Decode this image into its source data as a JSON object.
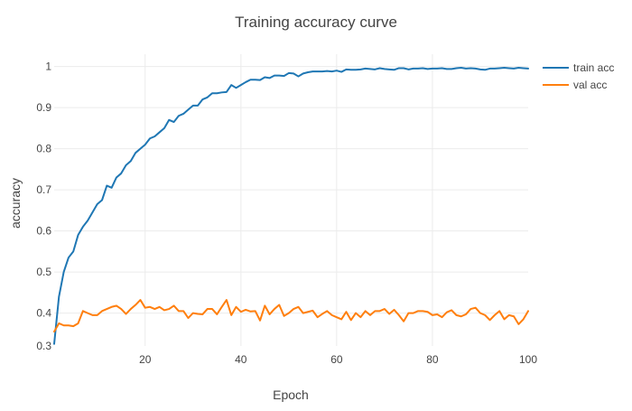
{
  "chart_data": {
    "type": "line",
    "title": "Training accuracy curve",
    "xlabel": "Epoch",
    "ylabel": "accuracy",
    "xlim": [
      1,
      100
    ],
    "ylim": [
      0.32,
      1.03
    ],
    "xticks": [
      20,
      40,
      60,
      80,
      100
    ],
    "yticks": [
      0.3,
      0.4,
      0.5,
      0.6,
      0.7,
      0.8,
      0.9,
      1
    ],
    "ytick_labels": [
      "0.3",
      "0.4",
      "0.5",
      "0.6",
      "0.7",
      "0.8",
      "0.9",
      "1"
    ],
    "grid": true,
    "legend_position": "top-right",
    "x": [
      1,
      2,
      3,
      4,
      5,
      6,
      7,
      8,
      9,
      10,
      11,
      12,
      13,
      14,
      15,
      16,
      17,
      18,
      19,
      20,
      21,
      22,
      23,
      24,
      25,
      26,
      27,
      28,
      29,
      30,
      31,
      32,
      33,
      34,
      35,
      36,
      37,
      38,
      39,
      40,
      41,
      42,
      43,
      44,
      45,
      46,
      47,
      48,
      49,
      50,
      51,
      52,
      53,
      54,
      55,
      56,
      57,
      58,
      59,
      60,
      61,
      62,
      63,
      64,
      65,
      66,
      67,
      68,
      69,
      70,
      71,
      72,
      73,
      74,
      75,
      76,
      77,
      78,
      79,
      80,
      81,
      82,
      83,
      84,
      85,
      86,
      87,
      88,
      89,
      90,
      91,
      92,
      93,
      94,
      95,
      96,
      97,
      98,
      99,
      100
    ],
    "series": [
      {
        "name": "train acc",
        "color": "#1f77b4",
        "values": [
          0.325,
          0.44,
          0.5,
          0.535,
          0.55,
          0.59,
          0.61,
          0.625,
          0.645,
          0.665,
          0.675,
          0.71,
          0.705,
          0.73,
          0.74,
          0.76,
          0.77,
          0.79,
          0.8,
          0.81,
          0.825,
          0.83,
          0.84,
          0.85,
          0.87,
          0.865,
          0.88,
          0.885,
          0.895,
          0.905,
          0.905,
          0.92,
          0.925,
          0.935,
          0.935,
          0.937,
          0.938,
          0.955,
          0.948,
          0.955,
          0.962,
          0.968,
          0.968,
          0.967,
          0.974,
          0.972,
          0.978,
          0.978,
          0.977,
          0.984,
          0.983,
          0.976,
          0.983,
          0.986,
          0.988,
          0.988,
          0.988,
          0.989,
          0.988,
          0.99,
          0.987,
          0.993,
          0.992,
          0.992,
          0.993,
          0.995,
          0.994,
          0.993,
          0.996,
          0.994,
          0.993,
          0.992,
          0.996,
          0.996,
          0.993,
          0.995,
          0.995,
          0.996,
          0.994,
          0.995,
          0.995,
          0.996,
          0.994,
          0.994,
          0.996,
          0.997,
          0.995,
          0.996,
          0.995,
          0.993,
          0.992,
          0.995,
          0.995,
          0.996,
          0.997,
          0.996,
          0.995,
          0.997,
          0.996,
          0.995
        ]
      },
      {
        "name": "val acc",
        "color": "#ff7f0e",
        "values": [
          0.355,
          0.375,
          0.37,
          0.37,
          0.368,
          0.375,
          0.405,
          0.4,
          0.395,
          0.395,
          0.405,
          0.41,
          0.415,
          0.418,
          0.41,
          0.398,
          0.41,
          0.42,
          0.432,
          0.413,
          0.415,
          0.41,
          0.415,
          0.407,
          0.41,
          0.418,
          0.405,
          0.405,
          0.388,
          0.4,
          0.398,
          0.397,
          0.41,
          0.41,
          0.397,
          0.415,
          0.432,
          0.395,
          0.415,
          0.403,
          0.408,
          0.404,
          0.405,
          0.382,
          0.418,
          0.397,
          0.41,
          0.42,
          0.393,
          0.4,
          0.41,
          0.415,
          0.4,
          0.403,
          0.406,
          0.39,
          0.398,
          0.405,
          0.395,
          0.39,
          0.385,
          0.403,
          0.383,
          0.4,
          0.39,
          0.405,
          0.395,
          0.405,
          0.405,
          0.41,
          0.398,
          0.408,
          0.395,
          0.38,
          0.4,
          0.4,
          0.405,
          0.405,
          0.403,
          0.395,
          0.397,
          0.39,
          0.402,
          0.407,
          0.395,
          0.392,
          0.397,
          0.41,
          0.413,
          0.4,
          0.395,
          0.383,
          0.395,
          0.405,
          0.385,
          0.395,
          0.392,
          0.373,
          0.385,
          0.405
        ]
      }
    ]
  }
}
